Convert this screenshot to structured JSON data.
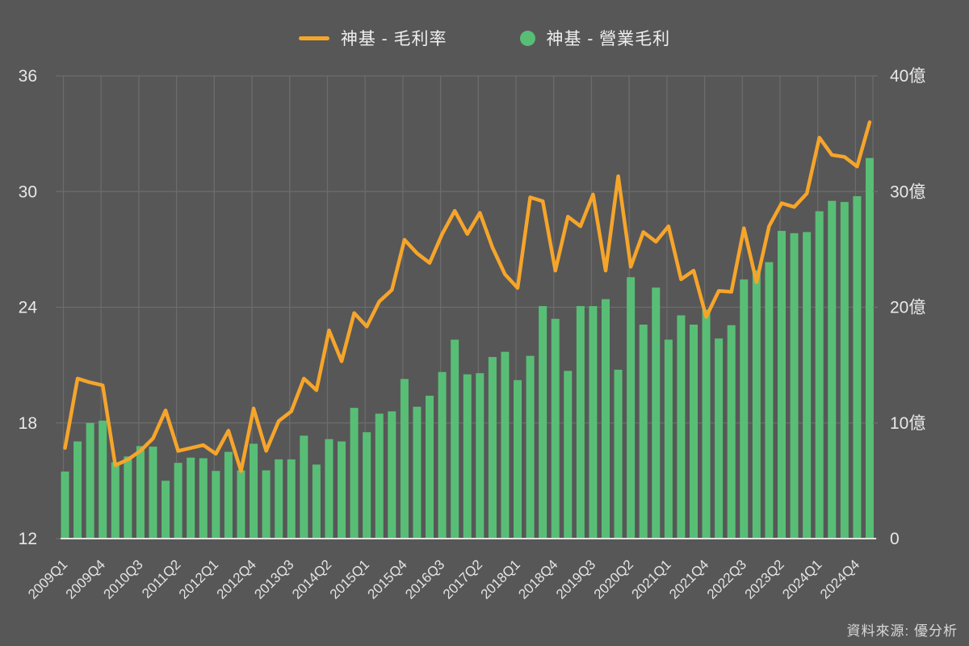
{
  "legend": [
    {
      "label": "神基 - 毛利率",
      "swatch": "line",
      "color": "#F6A52B"
    },
    {
      "label": "神基 - 營業毛利",
      "swatch": "circle",
      "color": "#58BE76"
    }
  ],
  "source_note": "資料來源: 優分析",
  "colors": {
    "background": "#575757",
    "grid": "#6C6C6C",
    "baseline": "#E2E2E2",
    "axis_text": "#E8E8E8",
    "x_text": "#E4E4E4",
    "line_series": "#F6A52B",
    "bar_series": "#58BE76",
    "source_text": "#D8D8D8"
  },
  "chart_data": {
    "type": "combo-bar-line",
    "title": "",
    "grid": true,
    "legend_position": "top",
    "categories": [
      "2009Q1",
      "2009Q2",
      "2009Q3",
      "2009Q4",
      "2010Q1",
      "2010Q2",
      "2010Q3",
      "2010Q4",
      "2011Q1",
      "2011Q2",
      "2011Q3",
      "2011Q4",
      "2012Q1",
      "2012Q2",
      "2012Q3",
      "2012Q4",
      "2013Q1",
      "2013Q2",
      "2013Q3",
      "2013Q4",
      "2014Q1",
      "2014Q2",
      "2014Q3",
      "2014Q4",
      "2015Q1",
      "2015Q2",
      "2015Q3",
      "2015Q4",
      "2016Q1",
      "2016Q2",
      "2016Q3",
      "2016Q4",
      "2017Q1",
      "2017Q2",
      "2017Q3",
      "2017Q4",
      "2018Q1",
      "2018Q2",
      "2018Q3",
      "2018Q4",
      "2019Q1",
      "2019Q2",
      "2019Q3",
      "2019Q4",
      "2020Q1",
      "2020Q2",
      "2020Q3",
      "2020Q4",
      "2021Q1",
      "2021Q2",
      "2021Q3",
      "2021Q4",
      "2022Q1",
      "2022Q2",
      "2022Q3",
      "2022Q4",
      "2023Q1",
      "2023Q2",
      "2023Q3",
      "2023Q4",
      "2024Q1",
      "2024Q2",
      "2024Q3",
      "2024Q4",
      "2025Q1"
    ],
    "x_tick_labels": [
      "2009Q1",
      "2009Q4",
      "2010Q3",
      "2011Q2",
      "2012Q1",
      "2012Q4",
      "2013Q3",
      "2014Q2",
      "2015Q1",
      "2015Q4",
      "2016Q3",
      "2017Q2",
      "2018Q1",
      "2018Q4",
      "2019Q3",
      "2020Q2",
      "2021Q1",
      "2021Q4",
      "2022Q3",
      "2023Q2",
      "2024Q1",
      "2024Q4"
    ],
    "series": [
      {
        "name": "神基 - 毛利率",
        "type": "line",
        "axis": "left",
        "unit": "%",
        "color": "#F6A52B",
        "values": [
          16.7,
          20.3,
          20.1,
          19.95,
          15.8,
          16.1,
          16.55,
          17.2,
          18.65,
          16.55,
          16.7,
          16.85,
          16.4,
          17.6,
          15.5,
          18.75,
          16.55,
          18.1,
          18.6,
          20.3,
          19.7,
          22.8,
          21.2,
          23.7,
          23.0,
          24.3,
          24.9,
          27.5,
          26.8,
          26.3,
          27.8,
          29.0,
          27.8,
          28.9,
          27.1,
          25.7,
          25.0,
          29.7,
          29.5,
          25.9,
          28.7,
          28.2,
          29.85,
          25.9,
          30.8,
          26.1,
          27.9,
          27.4,
          28.2,
          25.45,
          25.9,
          23.5,
          24.85,
          24.8,
          28.1,
          25.3,
          28.2,
          29.4,
          29.2,
          29.9,
          32.8,
          31.9,
          31.8,
          31.3,
          33.6
        ]
      },
      {
        "name": "神基 - 營業毛利",
        "type": "bar",
        "axis": "right",
        "unit": "億",
        "color": "#58BE76",
        "values": [
          5.8,
          8.4,
          10.0,
          10.2,
          6.6,
          7.1,
          8.0,
          7.95,
          5.0,
          6.55,
          7.0,
          6.95,
          5.85,
          7.5,
          5.9,
          8.2,
          5.9,
          6.85,
          6.85,
          8.9,
          6.4,
          8.6,
          8.4,
          11.3,
          9.2,
          10.8,
          11.0,
          13.8,
          11.4,
          12.35,
          14.4,
          17.2,
          14.2,
          14.3,
          15.7,
          16.15,
          13.7,
          15.8,
          20.1,
          19.0,
          14.5,
          20.1,
          20.1,
          20.7,
          14.6,
          22.6,
          18.5,
          21.7,
          17.2,
          19.3,
          18.5,
          19.8,
          17.3,
          18.45,
          22.4,
          23.2,
          23.9,
          26.6,
          26.4,
          26.5,
          28.3,
          29.2,
          29.1,
          29.6,
          32.9
        ]
      }
    ],
    "left_axis": {
      "min": 12,
      "max": 36,
      "ticks": [
        36,
        30,
        24,
        18,
        12
      ]
    },
    "right_axis": {
      "min": 0,
      "max": 40,
      "ticks": [
        "40億",
        "30億",
        "20億",
        "10億",
        "0"
      ]
    }
  }
}
